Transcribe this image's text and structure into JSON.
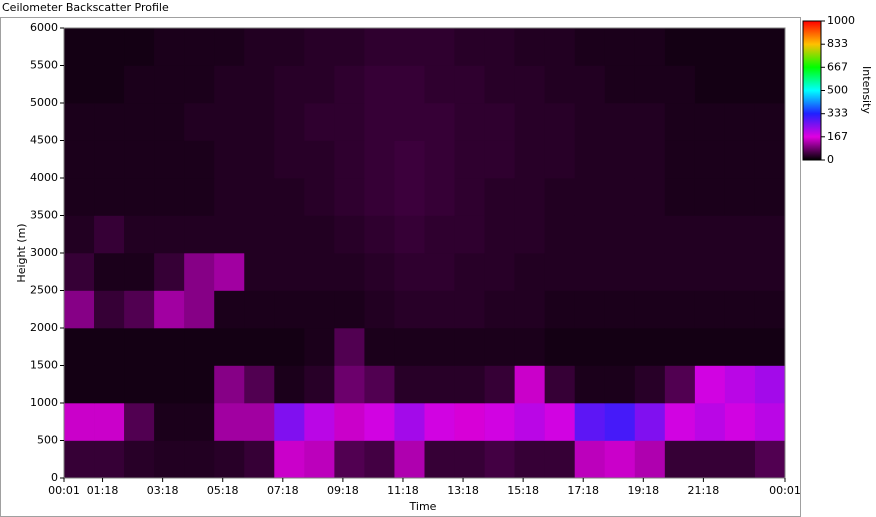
{
  "chart_data": {
    "type": "heatmap",
    "title": "Ceilometer Backscatter Profile",
    "xlabel": "Time",
    "ylabel": "Height (m)",
    "colorbar_label": "Intensity",
    "x_bins": [
      1,
      61,
      121,
      181,
      241,
      301,
      361,
      421,
      481,
      541,
      601,
      661,
      721,
      781,
      841,
      901,
      961,
      1021,
      1081,
      1141,
      1201,
      1261,
      1321,
      1381,
      1441
    ],
    "y_bins": [
      0,
      500,
      1000,
      1500,
      2000,
      2500,
      3000,
      3500,
      4000,
      4500,
      5000,
      5500,
      6000
    ],
    "values": [
      [
        40,
        40,
        30,
        25,
        25,
        30,
        40,
        150,
        140,
        60,
        50,
        130,
        40,
        40,
        50,
        40,
        40,
        140,
        150,
        130,
        40,
        40,
        40,
        60
      ],
      [
        150,
        150,
        60,
        20,
        20,
        120,
        120,
        250,
        200,
        150,
        180,
        220,
        180,
        160,
        180,
        200,
        180,
        280,
        300,
        250,
        180,
        200,
        180,
        200
      ],
      [
        15,
        15,
        15,
        15,
        15,
        100,
        60,
        20,
        30,
        80,
        60,
        30,
        30,
        30,
        40,
        150,
        40,
        20,
        20,
        30,
        60,
        180,
        200,
        220
      ],
      [
        15,
        15,
        15,
        15,
        15,
        15,
        15,
        15,
        20,
        60,
        20,
        20,
        20,
        20,
        20,
        20,
        15,
        15,
        15,
        15,
        15,
        15,
        15,
        15
      ],
      [
        100,
        40,
        60,
        120,
        100,
        20,
        20,
        20,
        20,
        20,
        25,
        30,
        30,
        30,
        25,
        25,
        20,
        20,
        20,
        20,
        20,
        20,
        20,
        20
      ],
      [
        40,
        20,
        20,
        40,
        100,
        120,
        25,
        25,
        25,
        25,
        30,
        35,
        35,
        30,
        30,
        25,
        25,
        25,
        25,
        25,
        25,
        25,
        25,
        25
      ],
      [
        25,
        40,
        25,
        25,
        25,
        25,
        25,
        25,
        25,
        30,
        35,
        40,
        35,
        35,
        30,
        30,
        25,
        25,
        25,
        25,
        25,
        25,
        25,
        25
      ],
      [
        20,
        20,
        20,
        20,
        20,
        25,
        25,
        25,
        30,
        35,
        40,
        45,
        40,
        35,
        30,
        30,
        25,
        25,
        25,
        25,
        20,
        20,
        20,
        20
      ],
      [
        20,
        20,
        20,
        20,
        20,
        25,
        25,
        30,
        30,
        35,
        40,
        45,
        40,
        35,
        35,
        30,
        30,
        25,
        25,
        25,
        20,
        20,
        20,
        20
      ],
      [
        20,
        20,
        20,
        20,
        25,
        25,
        25,
        30,
        35,
        35,
        40,
        40,
        40,
        35,
        35,
        30,
        30,
        25,
        25,
        25,
        20,
        20,
        20,
        20
      ],
      [
        15,
        15,
        20,
        20,
        20,
        25,
        25,
        30,
        30,
        35,
        40,
        40,
        35,
        35,
        30,
        30,
        25,
        25,
        20,
        20,
        20,
        15,
        15,
        15
      ],
      [
        15,
        15,
        15,
        20,
        20,
        20,
        25,
        25,
        30,
        30,
        35,
        35,
        35,
        30,
        30,
        25,
        25,
        20,
        20,
        20,
        15,
        15,
        15,
        15
      ]
    ],
    "colorscale": [
      "#000000",
      "#e000e0",
      "#2020ff",
      "#00ffff",
      "#00ff00",
      "#ffc000",
      "#ff0000"
    ],
    "clim": [
      0,
      1000
    ],
    "cticks": [
      0,
      167,
      333,
      500,
      667,
      833,
      1000
    ],
    "xlim": [
      1,
      1441
    ],
    "xticks": [
      {
        "value": 1,
        "label": "00:01"
      },
      {
        "value": 78,
        "label": "01:18"
      },
      {
        "value": 198,
        "label": "03:18"
      },
      {
        "value": 318,
        "label": "05:18"
      },
      {
        "value": 438,
        "label": "07:18"
      },
      {
        "value": 558,
        "label": "09:18"
      },
      {
        "value": 678,
        "label": "11:18"
      },
      {
        "value": 798,
        "label": "13:18"
      },
      {
        "value": 918,
        "label": "15:18"
      },
      {
        "value": 1038,
        "label": "17:18"
      },
      {
        "value": 1158,
        "label": "19:18"
      },
      {
        "value": 1278,
        "label": "21:18"
      },
      {
        "value": 1441,
        "label": "00:01"
      }
    ],
    "ylim": [
      0,
      6000
    ],
    "yticks": [
      0,
      500,
      1000,
      1500,
      2000,
      2500,
      3000,
      3500,
      4000,
      4500,
      5000,
      5500,
      6000
    ]
  }
}
